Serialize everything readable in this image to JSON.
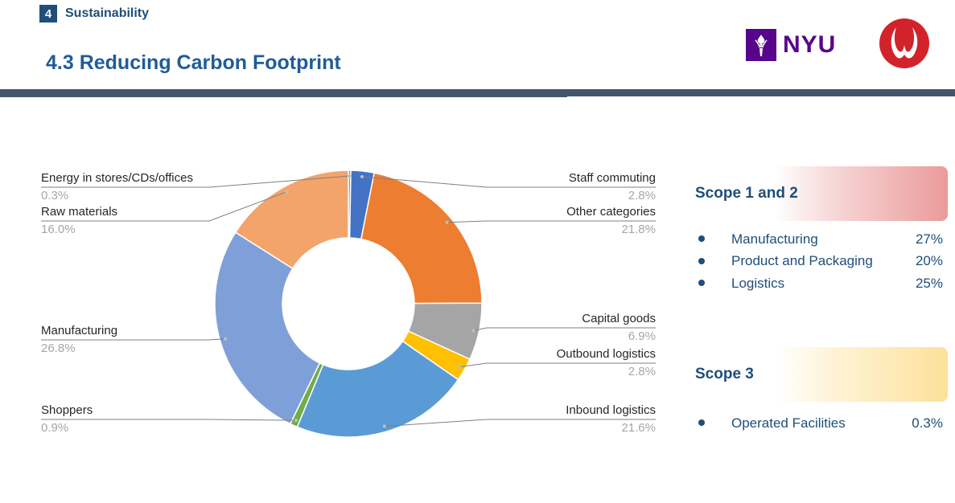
{
  "header": {
    "section_number": "4",
    "section_name": "Sustainability",
    "page_title": "4.3 Reducing Carbon Footprint",
    "nyu_text": "NYU"
  },
  "chart_data": {
    "type": "pie",
    "donut": true,
    "title": "",
    "slices": [
      {
        "label": "Energy in stores/CDs/offices",
        "value": 0.3,
        "value_label": "0.3%",
        "color": "#5b9bd5"
      },
      {
        "label": "Staff commuting",
        "value": 2.8,
        "value_label": "2.8%",
        "color": "#4472c4"
      },
      {
        "label": "Other categories",
        "value": 21.8,
        "value_label": "21.8%",
        "color": "#ed7d31"
      },
      {
        "label": "Capital goods",
        "value": 6.9,
        "value_label": "6.9%",
        "color": "#a5a5a5"
      },
      {
        "label": "Outbound logistics",
        "value": 2.8,
        "value_label": "2.8%",
        "color": "#ffc000"
      },
      {
        "label": "Inbound logistics",
        "value": 21.6,
        "value_label": "21.6%",
        "color": "#5b9bd5"
      },
      {
        "label": "Shoppers",
        "value": 0.9,
        "value_label": "0.9%",
        "color": "#70ad47"
      },
      {
        "label": "Manufacturing",
        "value": 26.8,
        "value_label": "26.8%",
        "color": "#7f9fd8"
      },
      {
        "label": "Raw materials",
        "value": 16.0,
        "value_label": "16.0%",
        "color": "#f2a46b"
      }
    ]
  },
  "scopes": {
    "scope12": {
      "title": "Scope 1 and 2",
      "items": [
        {
          "label": "Manufacturing",
          "value": "27%"
        },
        {
          "label": "Product and Packaging",
          "value": "20%"
        },
        {
          "label": "Logistics",
          "value": "25%"
        }
      ]
    },
    "scope3": {
      "title": "Scope 3",
      "items": [
        {
          "label": "Operated Facilities",
          "value": "0.3%"
        }
      ]
    }
  }
}
